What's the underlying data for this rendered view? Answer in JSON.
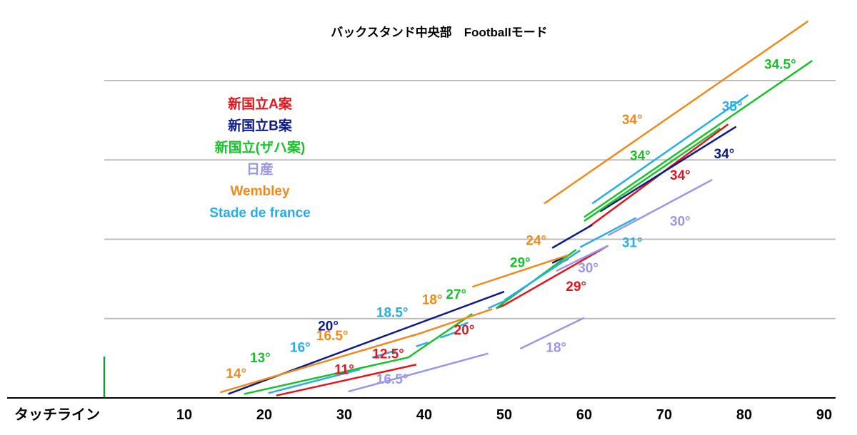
{
  "chart_data": {
    "type": "line",
    "title": "バックスタンド中央部　Footballモード",
    "xlabel": "",
    "ylabel": "",
    "xlim": [
      0,
      92
    ],
    "ylim": [
      0,
      40
    ],
    "grid": true,
    "legend_position": "upper-left",
    "touchline": {
      "label": "タッチライン",
      "x": 0,
      "color": "#1a9a3c"
    },
    "xticks": [
      10,
      20,
      30,
      40,
      50,
      60,
      70,
      80,
      90
    ],
    "gridlines_y": [
      10,
      20,
      30,
      40
    ],
    "series": [
      {
        "name": "新国立A案",
        "color": "#e4141c",
        "segments": [
          {
            "x": [
              21.5,
              39
            ],
            "y": [
              0.3,
              4.2
            ]
          },
          {
            "x": [
              49,
              50
            ],
            "y": [
              11.3,
              11.7
            ]
          },
          {
            "x": [
              50,
              63
            ],
            "y": [
              11.7,
              19.2
            ]
          },
          {
            "x": [
              56,
              58
            ],
            "y": [
              16.5,
              17.5
            ]
          },
          {
            "x": [
              60.5,
              78
            ],
            "y": [
              21.5,
              34.5
            ]
          }
        ],
        "labels": [
          {
            "text": "11°",
            "x": 30,
            "y": 3
          },
          {
            "text": "12.5°",
            "x": 35.5,
            "y": 5
          },
          {
            "text": "20°",
            "x": 45,
            "y": 8
          },
          {
            "text": "29°",
            "x": 59,
            "y": 13.5
          },
          {
            "text": "34°",
            "x": 72,
            "y": 27.5
          }
        ]
      },
      {
        "name": "新国立B案",
        "color": "#0c1b86",
        "segments": [
          {
            "x": [
              15.5,
              50
            ],
            "y": [
              0.5,
              13.4
            ]
          },
          {
            "x": [
              56,
              58
            ],
            "y": [
              17,
              18
            ]
          },
          {
            "x": [
              56,
              61
            ],
            "y": [
              18.9,
              21.8
            ]
          },
          {
            "x": [
              62,
              79
            ],
            "y": [
              23.5,
              34.2
            ]
          }
        ],
        "labels": [
          {
            "text": "20°",
            "x": 28,
            "y": 8.5
          },
          {
            "text": "34°",
            "x": 77.5,
            "y": 30.2
          }
        ]
      },
      {
        "name": "新国立(ザハ案)",
        "color": "#18c22a",
        "segments": [
          {
            "x": [
              17.5,
              38
            ],
            "y": [
              0.5,
              5.1
            ]
          },
          {
            "x": [
              38,
              46
            ],
            "y": [
              5.1,
              10.6
            ]
          },
          {
            "x": [
              49,
              59
            ],
            "y": [
              11.3,
              18.7
            ]
          },
          {
            "x": [
              60,
              77
            ],
            "y": [
              22.3,
              34
            ]
          },
          {
            "x": [
              60,
              88.5
            ],
            "y": [
              22.8,
              42.5
            ]
          }
        ],
        "labels": [
          {
            "text": "13°",
            "x": 19.5,
            "y": 4.5
          },
          {
            "text": "27°",
            "x": 44,
            "y": 12.5
          },
          {
            "text": "29°",
            "x": 52,
            "y": 16.5
          },
          {
            "text": "34°",
            "x": 67,
            "y": 30
          },
          {
            "text": "34.5°",
            "x": 84.5,
            "y": 41.5
          }
        ]
      },
      {
        "name": "日産",
        "color": "#9998e6",
        "segments": [
          {
            "x": [
              30.5,
              48
            ],
            "y": [
              0.8,
              5.6
            ]
          },
          {
            "x": [
              52,
              60
            ],
            "y": [
              6.2,
              10.1
            ]
          },
          {
            "x": [
              56.5,
              63
            ],
            "y": [
              16,
              19.2
            ]
          },
          {
            "x": [
              63,
              76
            ],
            "y": [
              20.5,
              27.5
            ]
          }
        ],
        "labels": [
          {
            "text": "16.5°",
            "x": 36,
            "y": 1.8
          },
          {
            "text": "18°",
            "x": 56.5,
            "y": 5.8
          },
          {
            "text": "30°",
            "x": 60.5,
            "y": 15.8
          },
          {
            "text": "30°",
            "x": 72,
            "y": 21.7
          }
        ]
      },
      {
        "name": "Wembley",
        "color": "#f18a1b",
        "segments": [
          {
            "x": [
              14.5,
              39
            ],
            "y": [
              0.7,
              8
            ]
          },
          {
            "x": [
              38.5,
              48.5
            ],
            "y": [
              7.8,
              11.2
            ]
          },
          {
            "x": [
              46,
              58
            ],
            "y": [
              14,
              18
            ]
          },
          {
            "x": [
              55,
              88
            ],
            "y": [
              24.5,
              47.5
            ]
          }
        ],
        "labels": [
          {
            "text": "14°",
            "x": 16.5,
            "y": 2.5
          },
          {
            "text": "16.5°",
            "x": 28.5,
            "y": 7.3
          },
          {
            "text": "18°",
            "x": 41,
            "y": 11.8
          },
          {
            "text": "24°",
            "x": 54,
            "y": 19.3
          },
          {
            "text": "34°",
            "x": 66,
            "y": 34.5
          }
        ]
      },
      {
        "name": "Stade de france",
        "color": "#27aee6",
        "segments": [
          {
            "x": [
              20.5,
              32
            ],
            "y": [
              0.6,
              3.6
            ]
          },
          {
            "x": [
              33.5,
              36.5
            ],
            "y": [
              5.1,
              6
            ]
          },
          {
            "x": [
              39,
              40.5
            ],
            "y": [
              6.5,
              7
            ]
          },
          {
            "x": [
              42,
              44
            ],
            "y": [
              7.6,
              8.3
            ]
          },
          {
            "x": [
              44.5,
              45.5
            ],
            "y": [
              9.1,
              9.5
            ]
          },
          {
            "x": [
              48,
              50
            ],
            "y": [
              11.3,
              12.2
            ]
          },
          {
            "x": [
              50,
              59.5
            ],
            "y": [
              12.3,
              18.6
            ]
          },
          {
            "x": [
              59.5,
              66.5
            ],
            "y": [
              19,
              22.7
            ]
          },
          {
            "x": [
              61,
              80.5
            ],
            "y": [
              24.5,
              38.2
            ]
          }
        ],
        "labels": [
          {
            "text": "16°",
            "x": 24.5,
            "y": 5.8
          },
          {
            "text": "18.5°",
            "x": 36,
            "y": 10.2
          },
          {
            "text": "31°",
            "x": 66,
            "y": 19
          },
          {
            "text": "35°",
            "x": 78.5,
            "y": 36.2
          }
        ]
      }
    ]
  }
}
